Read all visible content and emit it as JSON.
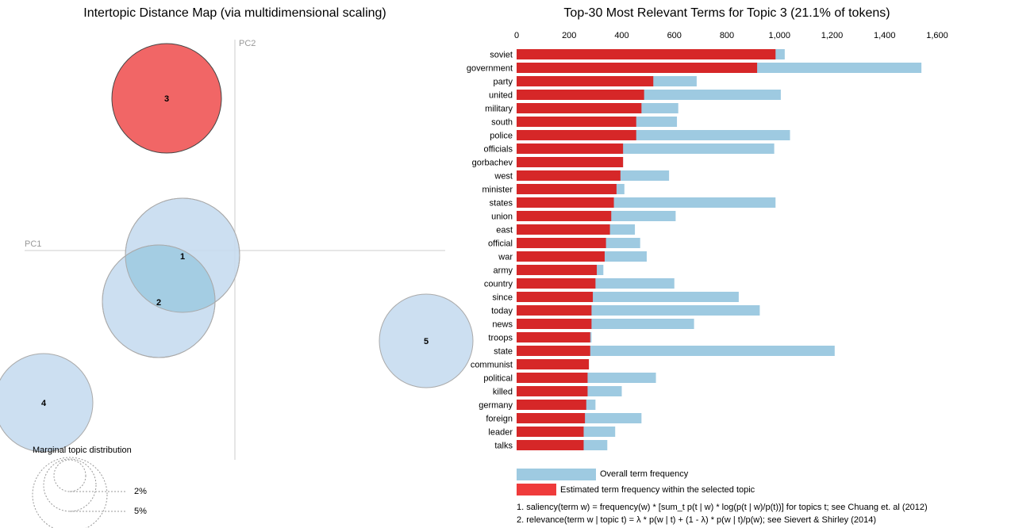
{
  "left_panel": {
    "title": "Intertopic Distance Map (via multidimensional scaling)",
    "pc1_label": "PC1",
    "pc2_label": "PC2",
    "marginal_label": "Marginal topic distribution",
    "marginal_levels": [
      "2%",
      "5%"
    ],
    "bubble_color": "#c6dbef",
    "selected_color": "#ef5555",
    "overlap_color": "#9ecae1",
    "topics": [
      {
        "id": "1",
        "selected": false
      },
      {
        "id": "2",
        "selected": false
      },
      {
        "id": "3",
        "selected": true
      },
      {
        "id": "4",
        "selected": false
      },
      {
        "id": "5",
        "selected": false
      }
    ]
  },
  "right_panel": {
    "title": "Top-30 Most Relevant Terms for Topic 3 (21.1% of tokens)",
    "legend_overall": "Overall term frequency",
    "legend_estimated": "Estimated term frequency within the selected topic",
    "note1": "1. saliency(term w) = frequency(w) * [sum_t p(t | w) * log(p(t | w)/p(t))] for topics t; see Chuang et. al (2012)",
    "note2": "2. relevance(term w | topic t) = λ * p(w | t) + (1 - λ) * p(w | t)/p(w); see Sievert & Shirley (2014)",
    "overall_color": "#9ecae1",
    "topic_color": "#d62728",
    "legend_topic_color": "#ef3b3b"
  },
  "chart_data": {
    "type": "bar",
    "orientation": "horizontal",
    "title": "Top-30 Most Relevant Terms for Topic 3 (21.1% of tokens)",
    "xlim": [
      0,
      1600
    ],
    "xticks": [
      "0",
      "200",
      "400",
      "600",
      "800",
      "1,000",
      "1,200",
      "1,400",
      "1,600"
    ],
    "tick_values": [
      0,
      200,
      400,
      600,
      800,
      1000,
      1200,
      1400,
      1600
    ],
    "categories": [
      "soviet",
      "government",
      "party",
      "united",
      "military",
      "south",
      "police",
      "officials",
      "gorbachev",
      "west",
      "minister",
      "states",
      "union",
      "east",
      "official",
      "war",
      "army",
      "country",
      "since",
      "today",
      "news",
      "troops",
      "state",
      "communist",
      "political",
      "killed",
      "germany",
      "foreign",
      "leader",
      "talks"
    ],
    "series": [
      {
        "name": "Overall term frequency",
        "values": [
          1020,
          1540,
          685,
          1005,
          615,
          610,
          1040,
          980,
          405,
          580,
          410,
          985,
          605,
          450,
          470,
          495,
          330,
          600,
          845,
          925,
          675,
          285,
          1210,
          275,
          530,
          400,
          300,
          475,
          375,
          345
        ]
      },
      {
        "name": "Estimated term frequency within the selected topic",
        "values": [
          985,
          915,
          520,
          485,
          475,
          455,
          455,
          405,
          405,
          395,
          380,
          370,
          360,
          355,
          340,
          335,
          305,
          300,
          290,
          285,
          285,
          280,
          280,
          275,
          270,
          270,
          265,
          260,
          255,
          255
        ]
      }
    ]
  }
}
